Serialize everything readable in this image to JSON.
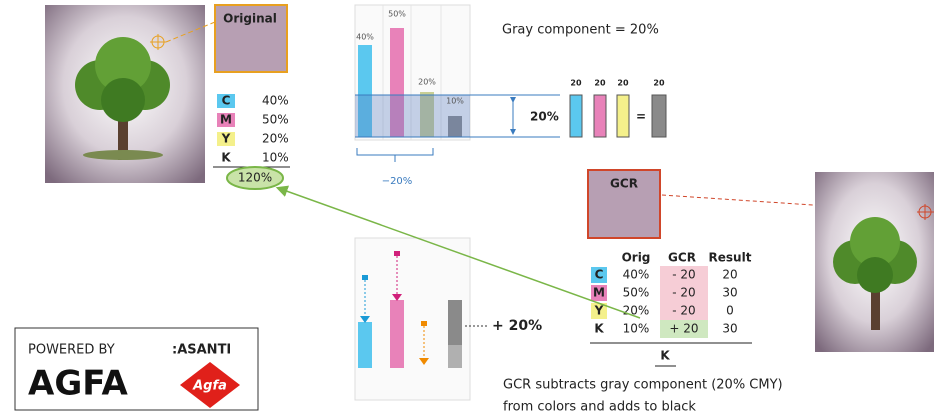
{
  "original": {
    "title": "Original",
    "inks": [
      {
        "letter": "C",
        "value": "40%"
      },
      {
        "letter": "M",
        "value": "50%"
      },
      {
        "letter": "Y",
        "value": "20%"
      },
      {
        "letter": "K",
        "value": "10%"
      }
    ],
    "total": "120%"
  },
  "bar_chart": {
    "labels": [
      "40%",
      "50%",
      "20%",
      "10%"
    ],
    "gray_band": "20%",
    "reduction": "−20%"
  },
  "gray_component": {
    "title": "Gray component = 20%",
    "parts": [
      "20",
      "20",
      "20"
    ],
    "equals": "=",
    "result": "20"
  },
  "gcr": {
    "title": "GCR",
    "headers": [
      "Orig",
      "GCR",
      "Result"
    ],
    "rows": [
      [
        "C",
        "40%",
        "- 20",
        "20"
      ],
      [
        "M",
        "50%",
        "- 20",
        "30"
      ],
      [
        "Y",
        "20%",
        "- 20",
        "0"
      ],
      [
        "K",
        "10%",
        "+ 20",
        "30"
      ]
    ],
    "footer": "K"
  },
  "added_black": "+ 20%",
  "caption": [
    "GCR subtracts gray component (20% CMY)",
    "from colors and adds to black"
  ],
  "logo": {
    "powered_by": "POWERED BY",
    "partner": ":ASANTI",
    "brand": "AGFA",
    "badge": "Agfa"
  }
}
